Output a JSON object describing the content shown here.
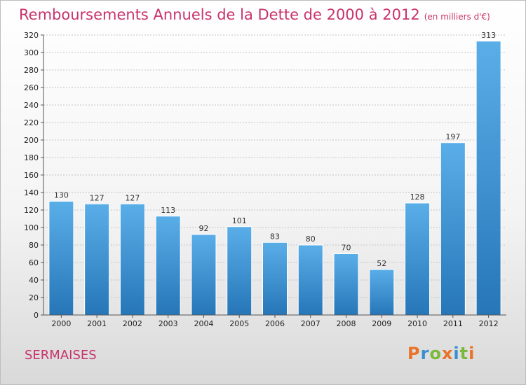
{
  "title": "Remboursements Annuels de la Dette de 2000 à 2012",
  "subtitle": "(en milliers d'€)",
  "city": "SERMAISES",
  "logo": {
    "letters": [
      "P",
      "r",
      "o",
      "x",
      "i",
      "t",
      "i"
    ],
    "colors": [
      "#e8742a",
      "#3a8fd1",
      "#7cb83c",
      "#e8742a",
      "#3a8fd1",
      "#7cb83c",
      "#e8742a"
    ]
  },
  "chart_data": {
    "type": "bar",
    "categories": [
      "2000",
      "2001",
      "2002",
      "2003",
      "2004",
      "2005",
      "2006",
      "2007",
      "2008",
      "2009",
      "2010",
      "2011",
      "2012"
    ],
    "values": [
      130,
      127,
      127,
      113,
      92,
      101,
      83,
      80,
      70,
      52,
      128,
      197,
      313
    ],
    "ylim": [
      0,
      320
    ],
    "yticks": [
      0,
      20,
      40,
      60,
      80,
      100,
      120,
      140,
      160,
      180,
      200,
      220,
      240,
      260,
      280,
      300,
      320
    ],
    "grid": true,
    "bar_color_top": "#5aaee8",
    "bar_color_bottom": "#2676b8"
  }
}
